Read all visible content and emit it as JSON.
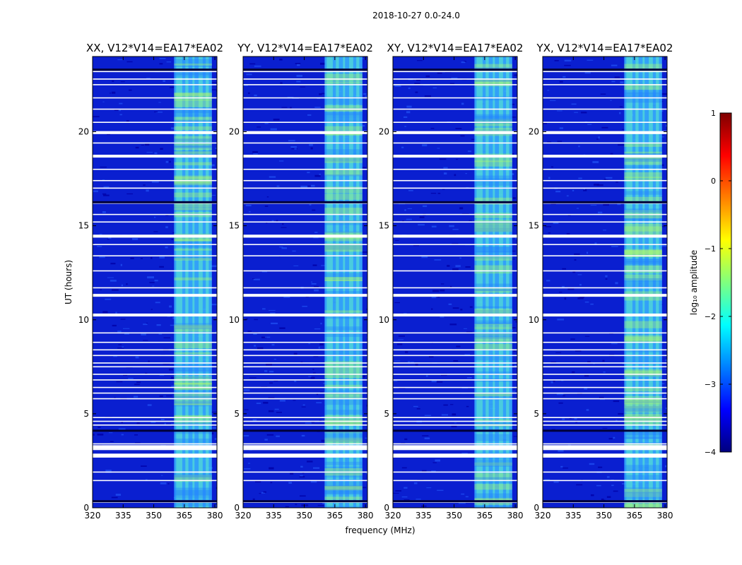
{
  "figure": {
    "suptitle": "2018-10-27 0.0-24.0"
  },
  "colors": {
    "background": "#ffffff",
    "rfi_band_base": "#39b9ff",
    "band_low": "#0a1fd0",
    "flagged": "#ffffff"
  },
  "chart_data": [
    {
      "type": "heatmap",
      "title": "XX, V12*V14=EA17*EA02",
      "xlabel": "",
      "ylabel": "UT (hours)",
      "xlim": [
        320,
        381
      ],
      "ylim": [
        0,
        24
      ],
      "x_ticks": [
        "320",
        "335",
        "350",
        "365",
        "380"
      ],
      "y_ticks": [
        "0",
        "5",
        "10",
        "15",
        "20"
      ]
    },
    {
      "type": "heatmap",
      "title": "YY, V12*V14=EA17*EA02",
      "xlabel": "frequency (MHz)",
      "ylabel": "",
      "xlim": [
        320,
        381
      ],
      "ylim": [
        0,
        24
      ],
      "x_ticks": [
        "320",
        "335",
        "350",
        "365",
        "380"
      ],
      "y_ticks": [
        "0",
        "5",
        "10",
        "15",
        "20"
      ]
    },
    {
      "type": "heatmap",
      "title": "XY, V12*V14=EA17*EA02",
      "xlabel": "",
      "ylabel": "",
      "xlim": [
        320,
        381
      ],
      "ylim": [
        0,
        24
      ],
      "x_ticks": [
        "320",
        "335",
        "350",
        "365",
        "380"
      ],
      "y_ticks": [
        "0",
        "5",
        "10",
        "15",
        "20"
      ]
    },
    {
      "type": "heatmap",
      "title": "YX, V12*V14=EA17*EA02",
      "xlabel": "",
      "ylabel": "",
      "xlim": [
        320,
        381
      ],
      "ylim": [
        0,
        24
      ],
      "x_ticks": [
        "320",
        "335",
        "350",
        "365",
        "380"
      ],
      "y_ticks": [
        "0",
        "5",
        "10",
        "15",
        "20"
      ]
    }
  ],
  "heatmap_model": {
    "rfi_band_mhz": [
      360,
      378.5
    ],
    "bright_subbands_mhz": [
      [
        361,
        364
      ],
      [
        365.5,
        367
      ],
      [
        369,
        370
      ],
      [
        372,
        374
      ],
      [
        375.5,
        377
      ]
    ],
    "flagged_hours": [
      0.3,
      1.45,
      1.9,
      2.7,
      2.85,
      3.1,
      3.3,
      3.4,
      4.4,
      4.6,
      4.8,
      5.8,
      6.1,
      6.4,
      6.8,
      7.1,
      7.5,
      7.7,
      8.1,
      8.4,
      8.8,
      9.3,
      10.3,
      11.3,
      11.7,
      12.6,
      13.4,
      14.0,
      14.4,
      15.2,
      15.6,
      16.2,
      17.0,
      17.4,
      18.0,
      18.7,
      19.4,
      20.0,
      20.5,
      21.2,
      21.8,
      22.5,
      22.8,
      23.2
    ],
    "thick_flag_hours": [
      2.8,
      3.2,
      10.25,
      11.3,
      14.45,
      18.7,
      19.95
    ],
    "dark_flag_hours": [
      0.35,
      4.1,
      16.25,
      23.3
    ]
  },
  "colorbar": {
    "label": "log₁₀ amplitude",
    "range": [
      -4,
      1
    ],
    "ticks": [
      "1",
      "0",
      "−1",
      "−2",
      "−3",
      "−4"
    ],
    "stops": [
      "#00007f",
      "#0000ff",
      "#007fff",
      "#00ffff",
      "#7fff7f",
      "#ffff00",
      "#ff7f00",
      "#ff0000",
      "#7f0000"
    ]
  }
}
